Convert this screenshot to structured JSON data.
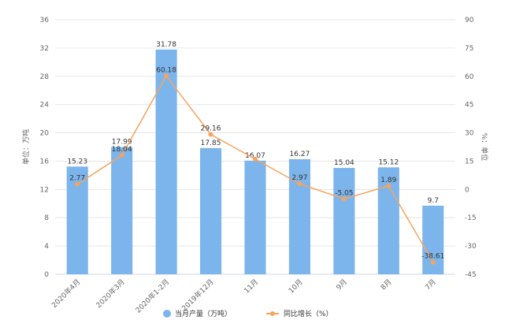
{
  "chart_data": {
    "type": "bar",
    "categories": [
      "2020年4月",
      "2020年3月",
      "2020年1-2月",
      "2019年12月",
      "11月",
      "10月",
      "9月",
      "8月",
      "7月"
    ],
    "series": [
      {
        "name": "当月产量（万吨）",
        "type": "bar",
        "color": "#7cb5ec",
        "values": [
          15.23,
          17.99,
          31.78,
          17.85,
          16.07,
          16.27,
          15.04,
          15.12,
          9.7
        ],
        "labels": [
          "15.23",
          "17.99",
          "31.78",
          "17.85",
          "16.07",
          "16.27",
          "15.04",
          "15.12",
          "9.7"
        ]
      },
      {
        "name": "同比增长（%）",
        "type": "line",
        "color": "#f7a35c",
        "axis": "right",
        "values": [
          2.77,
          18.04,
          60.18,
          29.16,
          16.07,
          2.97,
          -5.05,
          1.89,
          -38.61
        ],
        "labels": [
          "2.77",
          "18.04",
          "60.18",
          "29.16",
          "",
          "2.97",
          "-5.05",
          "1.89",
          "-38.61"
        ]
      }
    ],
    "ylabel": "单位：万吨",
    "y2label": "%：单位",
    "ylim": [
      0,
      36
    ],
    "y2lim": [
      -45,
      90
    ],
    "yticks": [
      "0",
      "4",
      "8",
      "12",
      "16",
      "20",
      "24",
      "28",
      "32",
      "36"
    ],
    "y2ticks": [
      "-45",
      "-30",
      "-15",
      "0",
      "15",
      "30",
      "45",
      "60",
      "75",
      "90"
    ],
    "grid": true,
    "legend": "bottom"
  }
}
